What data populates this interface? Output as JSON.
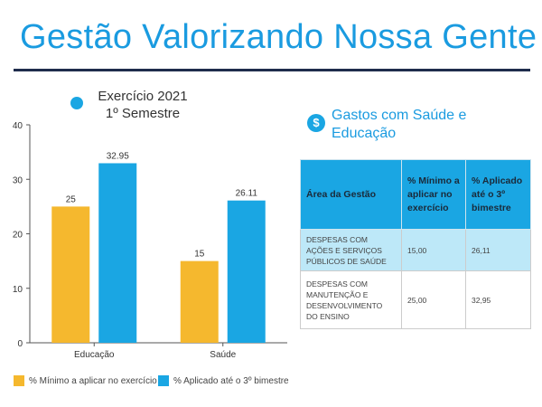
{
  "header": {
    "title": "Gestão Valorizando Nossa Gente"
  },
  "chart_header": {
    "title": "Exercício 2021\n1º Semestre"
  },
  "chart_data": {
    "type": "bar",
    "title": "Exercício 2021 1º Semestre",
    "categories": [
      "Educação",
      "Saúde"
    ],
    "series": [
      {
        "name": "% Mínimo a aplicar no exercício",
        "values": [
          25,
          15
        ],
        "labels": [
          "25",
          "15"
        ],
        "color": "#f5b82e"
      },
      {
        "name": "% Aplicado até o 3º bimestre",
        "values": [
          32.95,
          26.11
        ],
        "labels": [
          "32.95",
          "26.11"
        ],
        "color": "#1aa6e3"
      }
    ],
    "ylim": [
      0,
      40
    ],
    "yticks": [
      0,
      10,
      20,
      30,
      40
    ],
    "grid": false,
    "legend": "bottom"
  },
  "section": {
    "title": "Gastos com Saúde e Educação",
    "icon": "dollar-icon"
  },
  "table": {
    "headers": [
      "Área da Gestão",
      "% Mínimo a aplicar no exercício",
      "% Aplicado até o 3º bimestre"
    ],
    "rows": [
      [
        "DESPESAS COM AÇÕES E SERVIÇOS PÚBLICOS DE SAÚDE",
        "15,00",
        "26,11"
      ],
      [
        "DESPESAS COM MANUTENÇÃO E DESENVOLVIMENTO DO ENSINO",
        "25,00",
        "32,95"
      ]
    ]
  },
  "colors": {
    "accent": "#1aa6e3",
    "yellow": "#f5b82e",
    "header_blue": "#1a9be0",
    "rule": "#1f2d4d"
  }
}
